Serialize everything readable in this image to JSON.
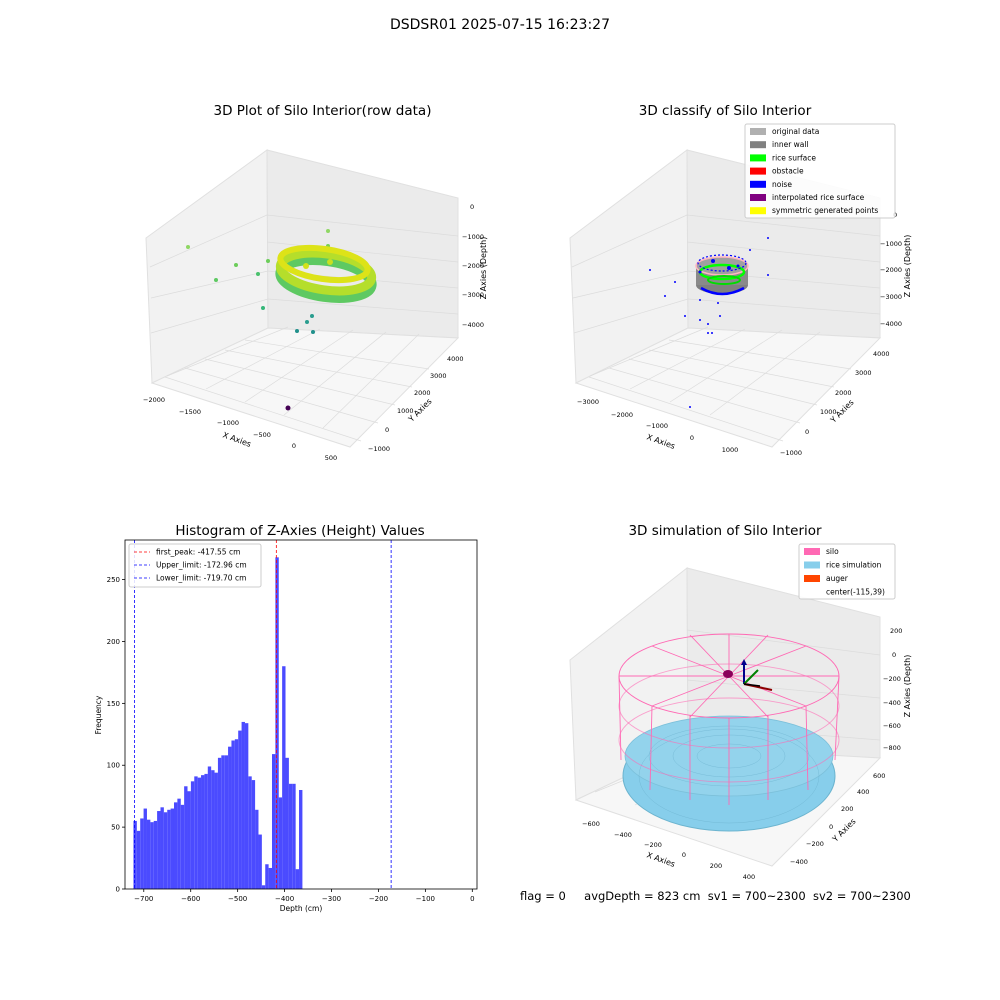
{
  "suptitle": "DSDSR01 2025-07-15 16:23:27",
  "chart_data": [
    {
      "type": "scatter",
      "subtype": "3d",
      "title": "3D Plot of Silo Interior(row data)",
      "xlabel": "X Axies",
      "ylabel": "Y Axies",
      "zlabel": "Z Axies (Depth)",
      "x_ticks": [
        "−2000",
        "−1500",
        "−1000",
        "−500",
        "0",
        "500"
      ],
      "y_ticks": [
        "−1000",
        "0",
        "1000",
        "2000",
        "3000",
        "4000"
      ],
      "z_ticks": [
        "0",
        "−1000",
        "−2000",
        "−3000",
        "−4000"
      ],
      "colormap": "viridis",
      "grid": true
    },
    {
      "type": "scatter",
      "subtype": "3d",
      "title": "3D classify of Silo Interior",
      "xlabel": "X Axies",
      "ylabel": "Y Axies",
      "zlabel": "Z Axies (Depth)",
      "x_ticks": [
        "−3000",
        "−2000",
        "−1000",
        "0",
        "1000"
      ],
      "y_ticks": [
        "−1000",
        "0",
        "1000",
        "2000",
        "3000",
        "4000"
      ],
      "z_ticks": [
        "0",
        "−1000",
        "−2000",
        "−3000",
        "−4000"
      ],
      "legend": [
        {
          "label": "original data",
          "color": "#b0b0b0"
        },
        {
          "label": "inner wall",
          "color": "#808080"
        },
        {
          "label": "rice surface",
          "color": "#00ff00"
        },
        {
          "label": "obstacle",
          "color": "#ff0000"
        },
        {
          "label": "noise",
          "color": "#0000ff"
        },
        {
          "label": "interpolated rice surface",
          "color": "#800080"
        },
        {
          "label": "symmetric generated points",
          "color": "#ffff00"
        }
      ],
      "legend_position": "top-right",
      "grid": true
    },
    {
      "type": "bar",
      "subtype": "histogram",
      "title": "Histogram of Z-Axies (Height) Values",
      "xlabel": "Depth (cm)",
      "ylabel": "Frequency",
      "bin_start": -722,
      "bin_width": 7.2,
      "values": [
        55,
        47,
        57,
        65,
        56,
        54,
        55,
        63,
        66,
        62,
        64,
        65,
        70,
        73,
        68,
        83,
        79,
        87,
        91,
        90,
        92,
        93,
        99,
        96,
        94,
        106,
        108,
        108,
        115,
        120,
        121,
        128,
        135,
        134,
        91,
        88,
        64,
        44,
        3,
        20,
        17,
        109,
        268,
        74,
        180,
        106,
        85,
        85,
        16,
        80
      ],
      "xlim": [
        -740,
        10
      ],
      "ylim": [
        0,
        282
      ],
      "x_ticks": [
        -700,
        -600,
        -500,
        -400,
        -300,
        -200,
        -100,
        0
      ],
      "x_tick_labels": [
        "−700",
        "−600",
        "−500",
        "−400",
        "−300",
        "−200",
        "−100",
        "0"
      ],
      "y_ticks": [
        0,
        50,
        100,
        150,
        200,
        250
      ],
      "vlines": [
        {
          "x": -417.55,
          "label": "first_peak: -417.55 cm",
          "color": "#ff0000"
        },
        {
          "x": -172.96,
          "label": "Upper_limit: -172.96 cm",
          "color": "#0000ff"
        },
        {
          "x": -719.7,
          "label": "Lower_limit: -719.70 cm",
          "color": "#0000ff"
        }
      ],
      "bar_color": "#4b4bff",
      "legend_position": "top-left"
    },
    {
      "type": "scatter",
      "subtype": "3d-simulation",
      "title": "3D simulation of Silo Interior",
      "xlabel": "X Axies",
      "ylabel": "Y Axies",
      "zlabel": "Z Axies (Depth)",
      "x_ticks": [
        "−600",
        "−400",
        "−200",
        "0",
        "200",
        "400"
      ],
      "y_ticks": [
        "−400",
        "−200",
        "0",
        "200",
        "400",
        "600"
      ],
      "z_ticks": [
        "200",
        "0",
        "−200",
        "−400",
        "−600",
        "−800"
      ],
      "legend": [
        {
          "label": "silo",
          "color": "#ff69b4"
        },
        {
          "label": "rice simulation",
          "color": "#87ceeb"
        },
        {
          "label": "auger",
          "color": "#ff4500"
        },
        {
          "label": "center(-115,39)",
          "color": "none"
        }
      ],
      "legend_position": "top-right"
    }
  ],
  "status": {
    "flag": "flag = 0",
    "avg_depth": "avgDepth = 823 cm",
    "sv1": "sv1 = 700~2300",
    "sv2": "sv2 = 700~2300"
  }
}
